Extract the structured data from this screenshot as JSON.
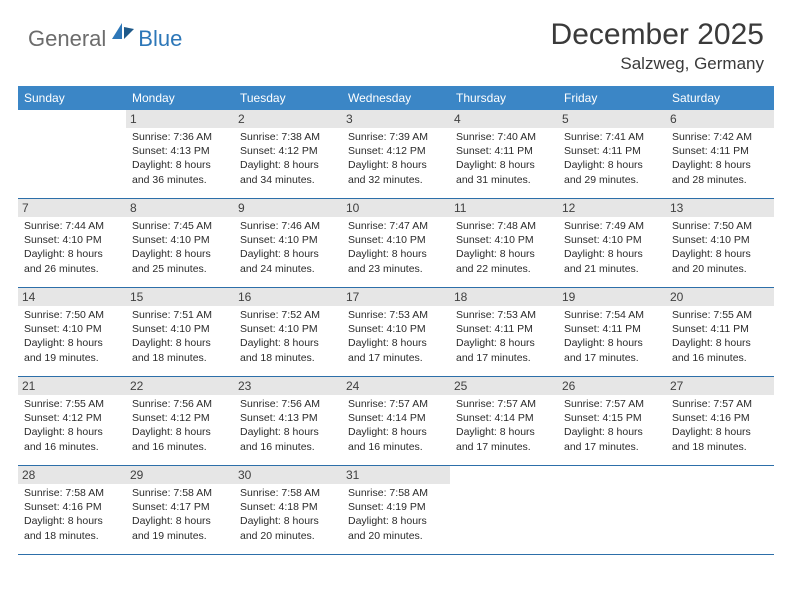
{
  "brand": {
    "part1": "General",
    "part2": "Blue"
  },
  "title": "December 2025",
  "location": "Salzweg, Germany",
  "colors": {
    "header_bg": "#3b86c6",
    "header_text": "#ffffff",
    "daynum_bg": "#e6e6e6",
    "divider": "#2d6fa9",
    "logo_gray": "#6c6c6c",
    "logo_blue": "#2d77b8",
    "body_text": "#2b2b2b"
  },
  "day_names": [
    "Sunday",
    "Monday",
    "Tuesday",
    "Wednesday",
    "Thursday",
    "Friday",
    "Saturday"
  ],
  "weeks": [
    [
      {
        "blank": true
      },
      {
        "n": "1",
        "sr": "7:36 AM",
        "ss": "4:13 PM",
        "dl": "8 hours and 36 minutes."
      },
      {
        "n": "2",
        "sr": "7:38 AM",
        "ss": "4:12 PM",
        "dl": "8 hours and 34 minutes."
      },
      {
        "n": "3",
        "sr": "7:39 AM",
        "ss": "4:12 PM",
        "dl": "8 hours and 32 minutes."
      },
      {
        "n": "4",
        "sr": "7:40 AM",
        "ss": "4:11 PM",
        "dl": "8 hours and 31 minutes."
      },
      {
        "n": "5",
        "sr": "7:41 AM",
        "ss": "4:11 PM",
        "dl": "8 hours and 29 minutes."
      },
      {
        "n": "6",
        "sr": "7:42 AM",
        "ss": "4:11 PM",
        "dl": "8 hours and 28 minutes."
      }
    ],
    [
      {
        "n": "7",
        "sr": "7:44 AM",
        "ss": "4:10 PM",
        "dl": "8 hours and 26 minutes."
      },
      {
        "n": "8",
        "sr": "7:45 AM",
        "ss": "4:10 PM",
        "dl": "8 hours and 25 minutes."
      },
      {
        "n": "9",
        "sr": "7:46 AM",
        "ss": "4:10 PM",
        "dl": "8 hours and 24 minutes."
      },
      {
        "n": "10",
        "sr": "7:47 AM",
        "ss": "4:10 PM",
        "dl": "8 hours and 23 minutes."
      },
      {
        "n": "11",
        "sr": "7:48 AM",
        "ss": "4:10 PM",
        "dl": "8 hours and 22 minutes."
      },
      {
        "n": "12",
        "sr": "7:49 AM",
        "ss": "4:10 PM",
        "dl": "8 hours and 21 minutes."
      },
      {
        "n": "13",
        "sr": "7:50 AM",
        "ss": "4:10 PM",
        "dl": "8 hours and 20 minutes."
      }
    ],
    [
      {
        "n": "14",
        "sr": "7:50 AM",
        "ss": "4:10 PM",
        "dl": "8 hours and 19 minutes."
      },
      {
        "n": "15",
        "sr": "7:51 AM",
        "ss": "4:10 PM",
        "dl": "8 hours and 18 minutes."
      },
      {
        "n": "16",
        "sr": "7:52 AM",
        "ss": "4:10 PM",
        "dl": "8 hours and 18 minutes."
      },
      {
        "n": "17",
        "sr": "7:53 AM",
        "ss": "4:10 PM",
        "dl": "8 hours and 17 minutes."
      },
      {
        "n": "18",
        "sr": "7:53 AM",
        "ss": "4:11 PM",
        "dl": "8 hours and 17 minutes."
      },
      {
        "n": "19",
        "sr": "7:54 AM",
        "ss": "4:11 PM",
        "dl": "8 hours and 17 minutes."
      },
      {
        "n": "20",
        "sr": "7:55 AM",
        "ss": "4:11 PM",
        "dl": "8 hours and 16 minutes."
      }
    ],
    [
      {
        "n": "21",
        "sr": "7:55 AM",
        "ss": "4:12 PM",
        "dl": "8 hours and 16 minutes."
      },
      {
        "n": "22",
        "sr": "7:56 AM",
        "ss": "4:12 PM",
        "dl": "8 hours and 16 minutes."
      },
      {
        "n": "23",
        "sr": "7:56 AM",
        "ss": "4:13 PM",
        "dl": "8 hours and 16 minutes."
      },
      {
        "n": "24",
        "sr": "7:57 AM",
        "ss": "4:14 PM",
        "dl": "8 hours and 16 minutes."
      },
      {
        "n": "25",
        "sr": "7:57 AM",
        "ss": "4:14 PM",
        "dl": "8 hours and 17 minutes."
      },
      {
        "n": "26",
        "sr": "7:57 AM",
        "ss": "4:15 PM",
        "dl": "8 hours and 17 minutes."
      },
      {
        "n": "27",
        "sr": "7:57 AM",
        "ss": "4:16 PM",
        "dl": "8 hours and 18 minutes."
      }
    ],
    [
      {
        "n": "28",
        "sr": "7:58 AM",
        "ss": "4:16 PM",
        "dl": "8 hours and 18 minutes."
      },
      {
        "n": "29",
        "sr": "7:58 AM",
        "ss": "4:17 PM",
        "dl": "8 hours and 19 minutes."
      },
      {
        "n": "30",
        "sr": "7:58 AM",
        "ss": "4:18 PM",
        "dl": "8 hours and 20 minutes."
      },
      {
        "n": "31",
        "sr": "7:58 AM",
        "ss": "4:19 PM",
        "dl": "8 hours and 20 minutes."
      },
      {
        "blank": true
      },
      {
        "blank": true
      },
      {
        "blank": true
      }
    ]
  ],
  "labels": {
    "sunrise": "Sunrise:",
    "sunset": "Sunset:",
    "daylight": "Daylight:"
  }
}
